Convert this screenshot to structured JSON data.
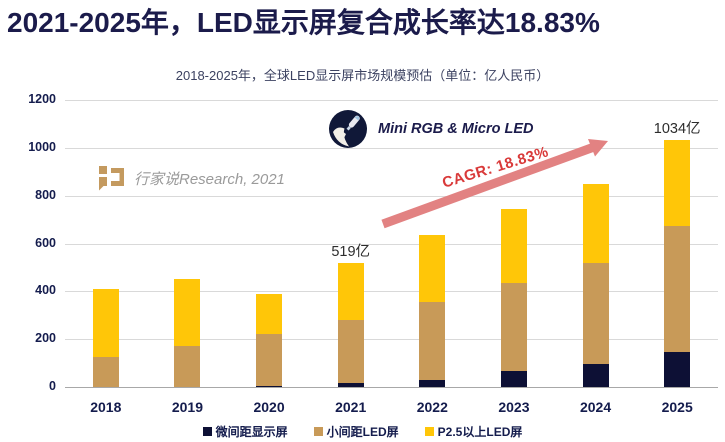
{
  "title": "2021-2025年，LED显示屏复合成长率达18.83%",
  "subtitle": "2018-2025年，全球LED显示屏市场规模预估（单位：亿人民币）",
  "watermark": {
    "source_label": "行家说Research, 2021"
  },
  "brand": {
    "label": "Mini RGB & Micro LED"
  },
  "annotations": {
    "cagr_label": "CAGR:  18.83%",
    "totals": [
      {
        "category": "2021",
        "label": "519亿"
      },
      {
        "category": "2025",
        "label": "1034亿"
      }
    ]
  },
  "colors": {
    "title_navy": "#1b1b4b",
    "axis_navy": "#141c4d",
    "subtitle": "#3c4261",
    "gridline": "#d9d9d9",
    "baseline": "#a8a8a8",
    "annotation_text": "#2d2d2d",
    "cagr_red": "#d93a3a",
    "arrow_salmon": "#e28282",
    "watermark_gray": "#9a9a9a",
    "watermark_gold": "#c49a5f",
    "logo_navy": "#101838",
    "bar_navy": "#0d1035",
    "bar_tan": "#c89a58",
    "bar_yellow": "#ffc608"
  },
  "chart_data": {
    "type": "bar",
    "stacked": true,
    "title": "2018-2025年，全球LED显示屏市场规模预估（单位：亿人民币）",
    "xlabel": "",
    "ylabel": "",
    "categories": [
      "2018",
      "2019",
      "2020",
      "2021",
      "2022",
      "2023",
      "2024",
      "2025"
    ],
    "series": [
      {
        "name": "微间距显示屏",
        "color": "#0d1035",
        "values": [
          0,
          0,
          5,
          15,
          30,
          65,
          95,
          148
        ]
      },
      {
        "name": "小间距LED屏",
        "color": "#c89a58",
        "values": [
          125,
          170,
          215,
          265,
          325,
          370,
          425,
          527
        ]
      },
      {
        "name": "P2.5以上LED屏",
        "color": "#ffc608",
        "values": [
          285,
          280,
          170,
          239,
          280,
          310,
          330,
          359
        ]
      }
    ],
    "totals": [
      410,
      450,
      390,
      519,
      635,
      745,
      850,
      1034
    ],
    "ylim": [
      0,
      1200
    ],
    "yticks": [
      0,
      200,
      400,
      600,
      800,
      1000,
      1200
    ],
    "grid": true,
    "legend_position": "bottom",
    "cagr_note": "CAGR 2021-2025: 18.83%"
  }
}
